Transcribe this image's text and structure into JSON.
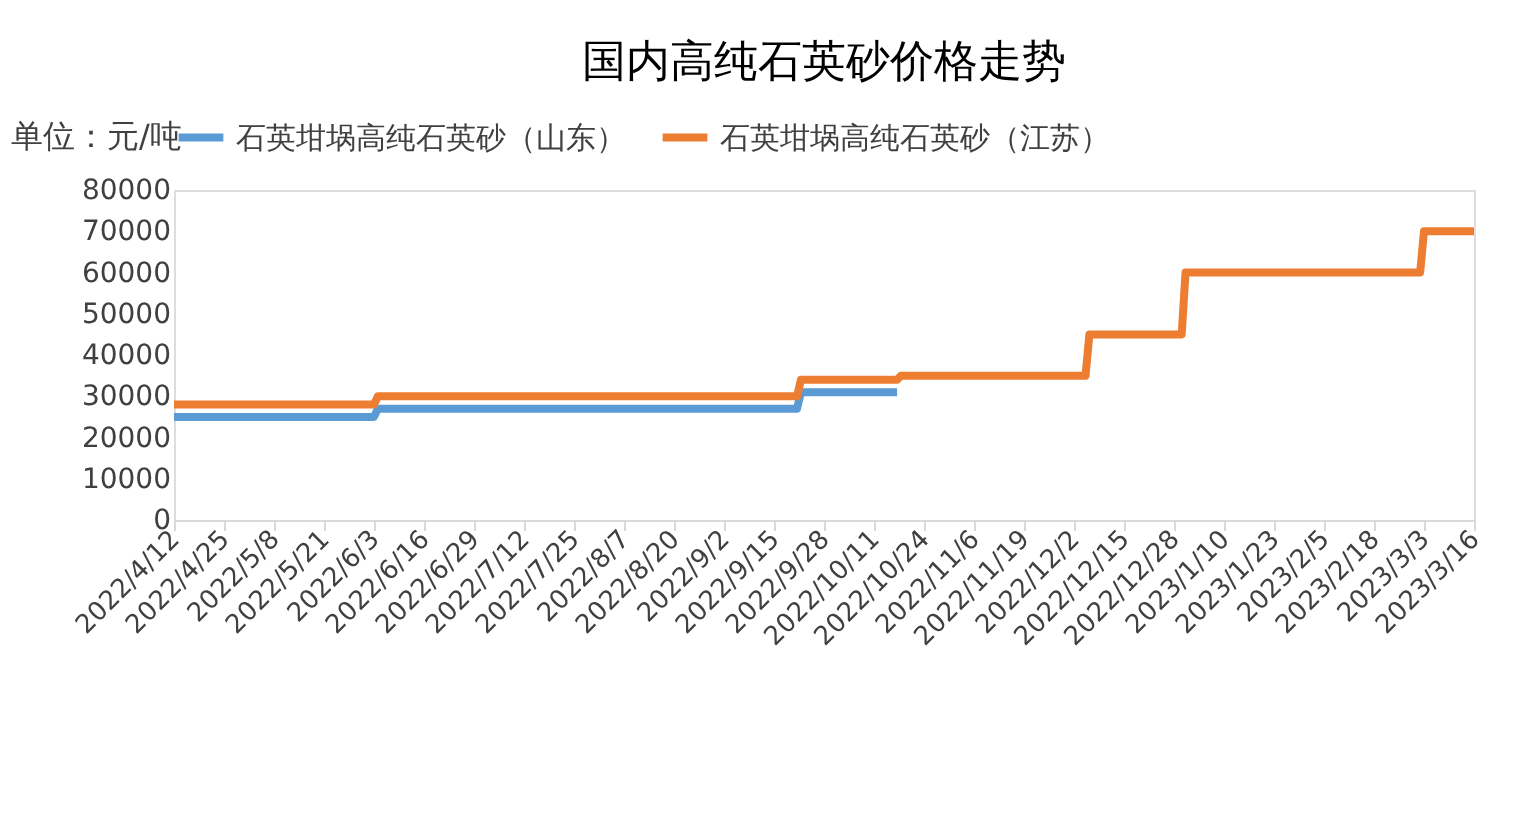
{
  "chart_data": {
    "type": "line",
    "title": "国内高纯石英砂价格走势",
    "ylabel": "单位：元/吨",
    "series": [
      {
        "name": "石英坩埚高纯石英砂（山东）",
        "color": "#5b9bd5",
        "x": [
          "2022-04-12",
          "2022-06-03",
          "2022-06-04",
          "2022-09-21",
          "2022-09-22",
          "2022-10-17"
        ],
        "values": [
          25000,
          25000,
          27000,
          27000,
          31000,
          31000
        ]
      },
      {
        "name": "石英坩埚高纯石英砂（江苏）",
        "color": "#ed7d31",
        "x": [
          "2022-04-12",
          "2022-06-03",
          "2022-06-04",
          "2022-09-21",
          "2022-09-22",
          "2022-10-17",
          "2022-10-18",
          "2022-12-05",
          "2022-12-06",
          "2022-12-30",
          "2022-12-31",
          "2023-03-02",
          "2023-03-03",
          "2023-03-16"
        ],
        "values": [
          28000,
          28000,
          30000,
          30000,
          34000,
          34000,
          35000,
          35000,
          45000,
          45000,
          60000,
          60000,
          70000,
          70000
        ]
      }
    ],
    "xlim": [
      "2022-04-12",
      "2023-03-16"
    ],
    "xticks": [
      {
        "value": "2022-04-12",
        "label": "2022/4/12"
      },
      {
        "value": "2022-04-25",
        "label": "2022/4/25"
      },
      {
        "value": "2022-05-08",
        "label": "2022/5/8"
      },
      {
        "value": "2022-05-21",
        "label": "2022/5/21"
      },
      {
        "value": "2022-06-03",
        "label": "2022/6/3"
      },
      {
        "value": "2022-06-16",
        "label": "2022/6/16"
      },
      {
        "value": "2022-06-29",
        "label": "2022/6/29"
      },
      {
        "value": "2022-07-12",
        "label": "2022/7/12"
      },
      {
        "value": "2022-07-25",
        "label": "2022/7/25"
      },
      {
        "value": "2022-08-07",
        "label": "2022/8/7"
      },
      {
        "value": "2022-08-20",
        "label": "2022/8/20"
      },
      {
        "value": "2022-09-02",
        "label": "2022/9/2"
      },
      {
        "value": "2022-09-15",
        "label": "2022/9/15"
      },
      {
        "value": "2022-09-28",
        "label": "2022/9/28"
      },
      {
        "value": "2022-10-11",
        "label": "2022/10/11"
      },
      {
        "value": "2022-10-24",
        "label": "2022/10/24"
      },
      {
        "value": "2022-11-06",
        "label": "2022/11/6"
      },
      {
        "value": "2022-11-19",
        "label": "2022/11/19"
      },
      {
        "value": "2022-12-02",
        "label": "2022/12/2"
      },
      {
        "value": "2022-12-15",
        "label": "2022/12/15"
      },
      {
        "value": "2022-12-28",
        "label": "2022/12/28"
      },
      {
        "value": "2023-01-10",
        "label": "2023/1/10"
      },
      {
        "value": "2023-01-23",
        "label": "2023/1/23"
      },
      {
        "value": "2023-02-05",
        "label": "2023/2/5"
      },
      {
        "value": "2023-02-18",
        "label": "2023/2/18"
      },
      {
        "value": "2023-03-03",
        "label": "2023/3/3"
      },
      {
        "value": "2023-03-16",
        "label": "2023/3/16"
      }
    ],
    "ylim": [
      0,
      80000
    ],
    "yticks": [
      0,
      10000,
      20000,
      30000,
      40000,
      50000,
      60000,
      70000,
      80000
    ],
    "grid": false,
    "legend": "top",
    "marker": "none",
    "line_style": "solid"
  }
}
